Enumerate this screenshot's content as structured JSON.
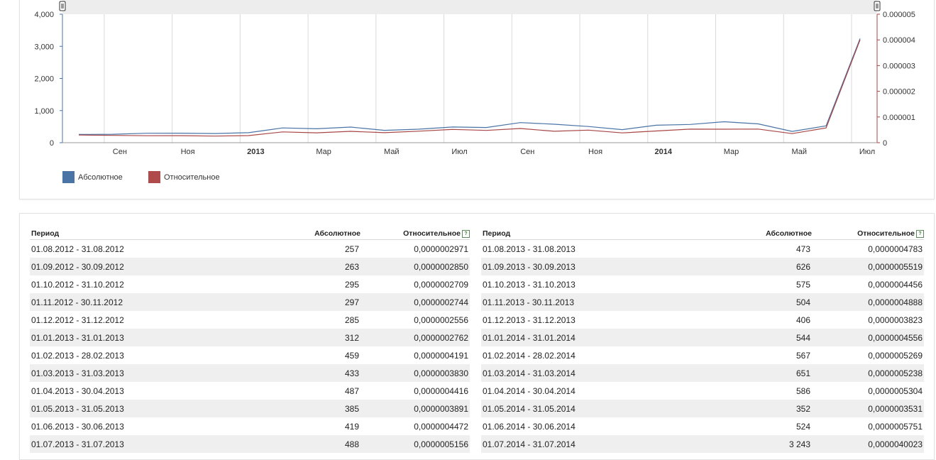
{
  "chart_data": {
    "type": "line",
    "x": [
      "2012-08",
      "2012-09",
      "2012-10",
      "2012-11",
      "2012-12",
      "2013-01",
      "2013-02",
      "2013-03",
      "2013-04",
      "2013-05",
      "2013-06",
      "2013-07",
      "2013-08",
      "2013-09",
      "2013-10",
      "2013-11",
      "2013-12",
      "2014-01",
      "2014-02",
      "2014-03",
      "2014-04",
      "2014-05",
      "2014-06",
      "2014-07"
    ],
    "x_ticks": [
      {
        "label": "Сен",
        "bold": false
      },
      {
        "label": "Ноя",
        "bold": false
      },
      {
        "label": "2013",
        "bold": true
      },
      {
        "label": "Мар",
        "bold": false
      },
      {
        "label": "Май",
        "bold": false
      },
      {
        "label": "Июл",
        "bold": false
      },
      {
        "label": "Сен",
        "bold": false
      },
      {
        "label": "Ноя",
        "bold": false
      },
      {
        "label": "2014",
        "bold": true
      },
      {
        "label": "Мар",
        "bold": false
      },
      {
        "label": "Май",
        "bold": false
      },
      {
        "label": "Июл",
        "bold": false
      }
    ],
    "y_left": {
      "ylim": [
        0,
        4000
      ],
      "ticks": [
        "0",
        "1,000",
        "2,000",
        "3,000",
        "4,000"
      ],
      "values": [
        0,
        1000,
        2000,
        3000,
        4000
      ]
    },
    "y_right": {
      "ylim": [
        0,
        5e-06
      ],
      "ticks": [
        "0",
        "0.000001",
        "0.000002",
        "0.000003",
        "0.000004",
        "0.000005"
      ],
      "values": [
        0,
        1e-06,
        2e-06,
        3e-06,
        4e-06,
        5e-06
      ]
    },
    "series": [
      {
        "name": "Абсолютное",
        "axis": "left",
        "color": "#4a74a6",
        "values": [
          257,
          263,
          295,
          297,
          285,
          312,
          459,
          433,
          487,
          385,
          419,
          488,
          473,
          626,
          575,
          504,
          406,
          544,
          567,
          651,
          586,
          352,
          524,
          3243
        ]
      },
      {
        "name": "Относительное",
        "axis": "right",
        "color": "#a84646",
        "values": [
          2.971e-07,
          2.85e-07,
          2.709e-07,
          2.744e-07,
          2.556e-07,
          2.762e-07,
          4.191e-07,
          3.83e-07,
          4.416e-07,
          3.891e-07,
          4.472e-07,
          5.156e-07,
          4.783e-07,
          5.519e-07,
          4.456e-07,
          4.888e-07,
          3.823e-07,
          4.556e-07,
          5.269e-07,
          5.238e-07,
          5.304e-07,
          3.531e-07,
          5.751e-07,
          4.0023e-06
        ]
      }
    ],
    "grid": true,
    "legend": "bottom-left"
  },
  "legend": {
    "absolute": "Абсолютное",
    "relative": "Относительное"
  },
  "table": {
    "headers": {
      "period": "Период",
      "absolute": "Абсолютное",
      "relative": "Относительное",
      "help": "?"
    },
    "left_rows": [
      [
        "01.08.2012 - 31.08.2012",
        "257",
        "0,0000002971"
      ],
      [
        "01.09.2012 - 30.09.2012",
        "263",
        "0,0000002850"
      ],
      [
        "01.10.2012 - 31.10.2012",
        "295",
        "0,0000002709"
      ],
      [
        "01.11.2012 - 30.11.2012",
        "297",
        "0,0000002744"
      ],
      [
        "01.12.2012 - 31.12.2012",
        "285",
        "0,0000002556"
      ],
      [
        "01.01.2013 - 31.01.2013",
        "312",
        "0,0000002762"
      ],
      [
        "01.02.2013 - 28.02.2013",
        "459",
        "0,0000004191"
      ],
      [
        "01.03.2013 - 31.03.2013",
        "433",
        "0,0000003830"
      ],
      [
        "01.04.2013 - 30.04.2013",
        "487",
        "0,0000004416"
      ],
      [
        "01.05.2013 - 31.05.2013",
        "385",
        "0,0000003891"
      ],
      [
        "01.06.2013 - 30.06.2013",
        "419",
        "0,0000004472"
      ],
      [
        "01.07.2013 - 31.07.2013",
        "488",
        "0,0000005156"
      ]
    ],
    "right_rows": [
      [
        "01.08.2013 - 31.08.2013",
        "473",
        "0,0000004783"
      ],
      [
        "01.09.2013 - 30.09.2013",
        "626",
        "0,0000005519"
      ],
      [
        "01.10.2013 - 31.10.2013",
        "575",
        "0,0000004456"
      ],
      [
        "01.11.2013 - 30.11.2013",
        "504",
        "0,0000004888"
      ],
      [
        "01.12.2013 - 31.12.2013",
        "406",
        "0,0000003823"
      ],
      [
        "01.01.2014 - 31.01.2014",
        "544",
        "0,0000004556"
      ],
      [
        "01.02.2014 - 28.02.2014",
        "567",
        "0,0000005269"
      ],
      [
        "01.03.2014 - 31.03.2014",
        "651",
        "0,0000005238"
      ],
      [
        "01.04.2014 - 30.04.2014",
        "586",
        "0,0000005304"
      ],
      [
        "01.05.2014 - 31.05.2014",
        "352",
        "0,0000003531"
      ],
      [
        "01.06.2014 - 30.06.2014",
        "524",
        "0,0000005751"
      ],
      [
        "01.07.2014 - 31.07.2014",
        "3 243",
        "0,0000040023"
      ]
    ]
  }
}
